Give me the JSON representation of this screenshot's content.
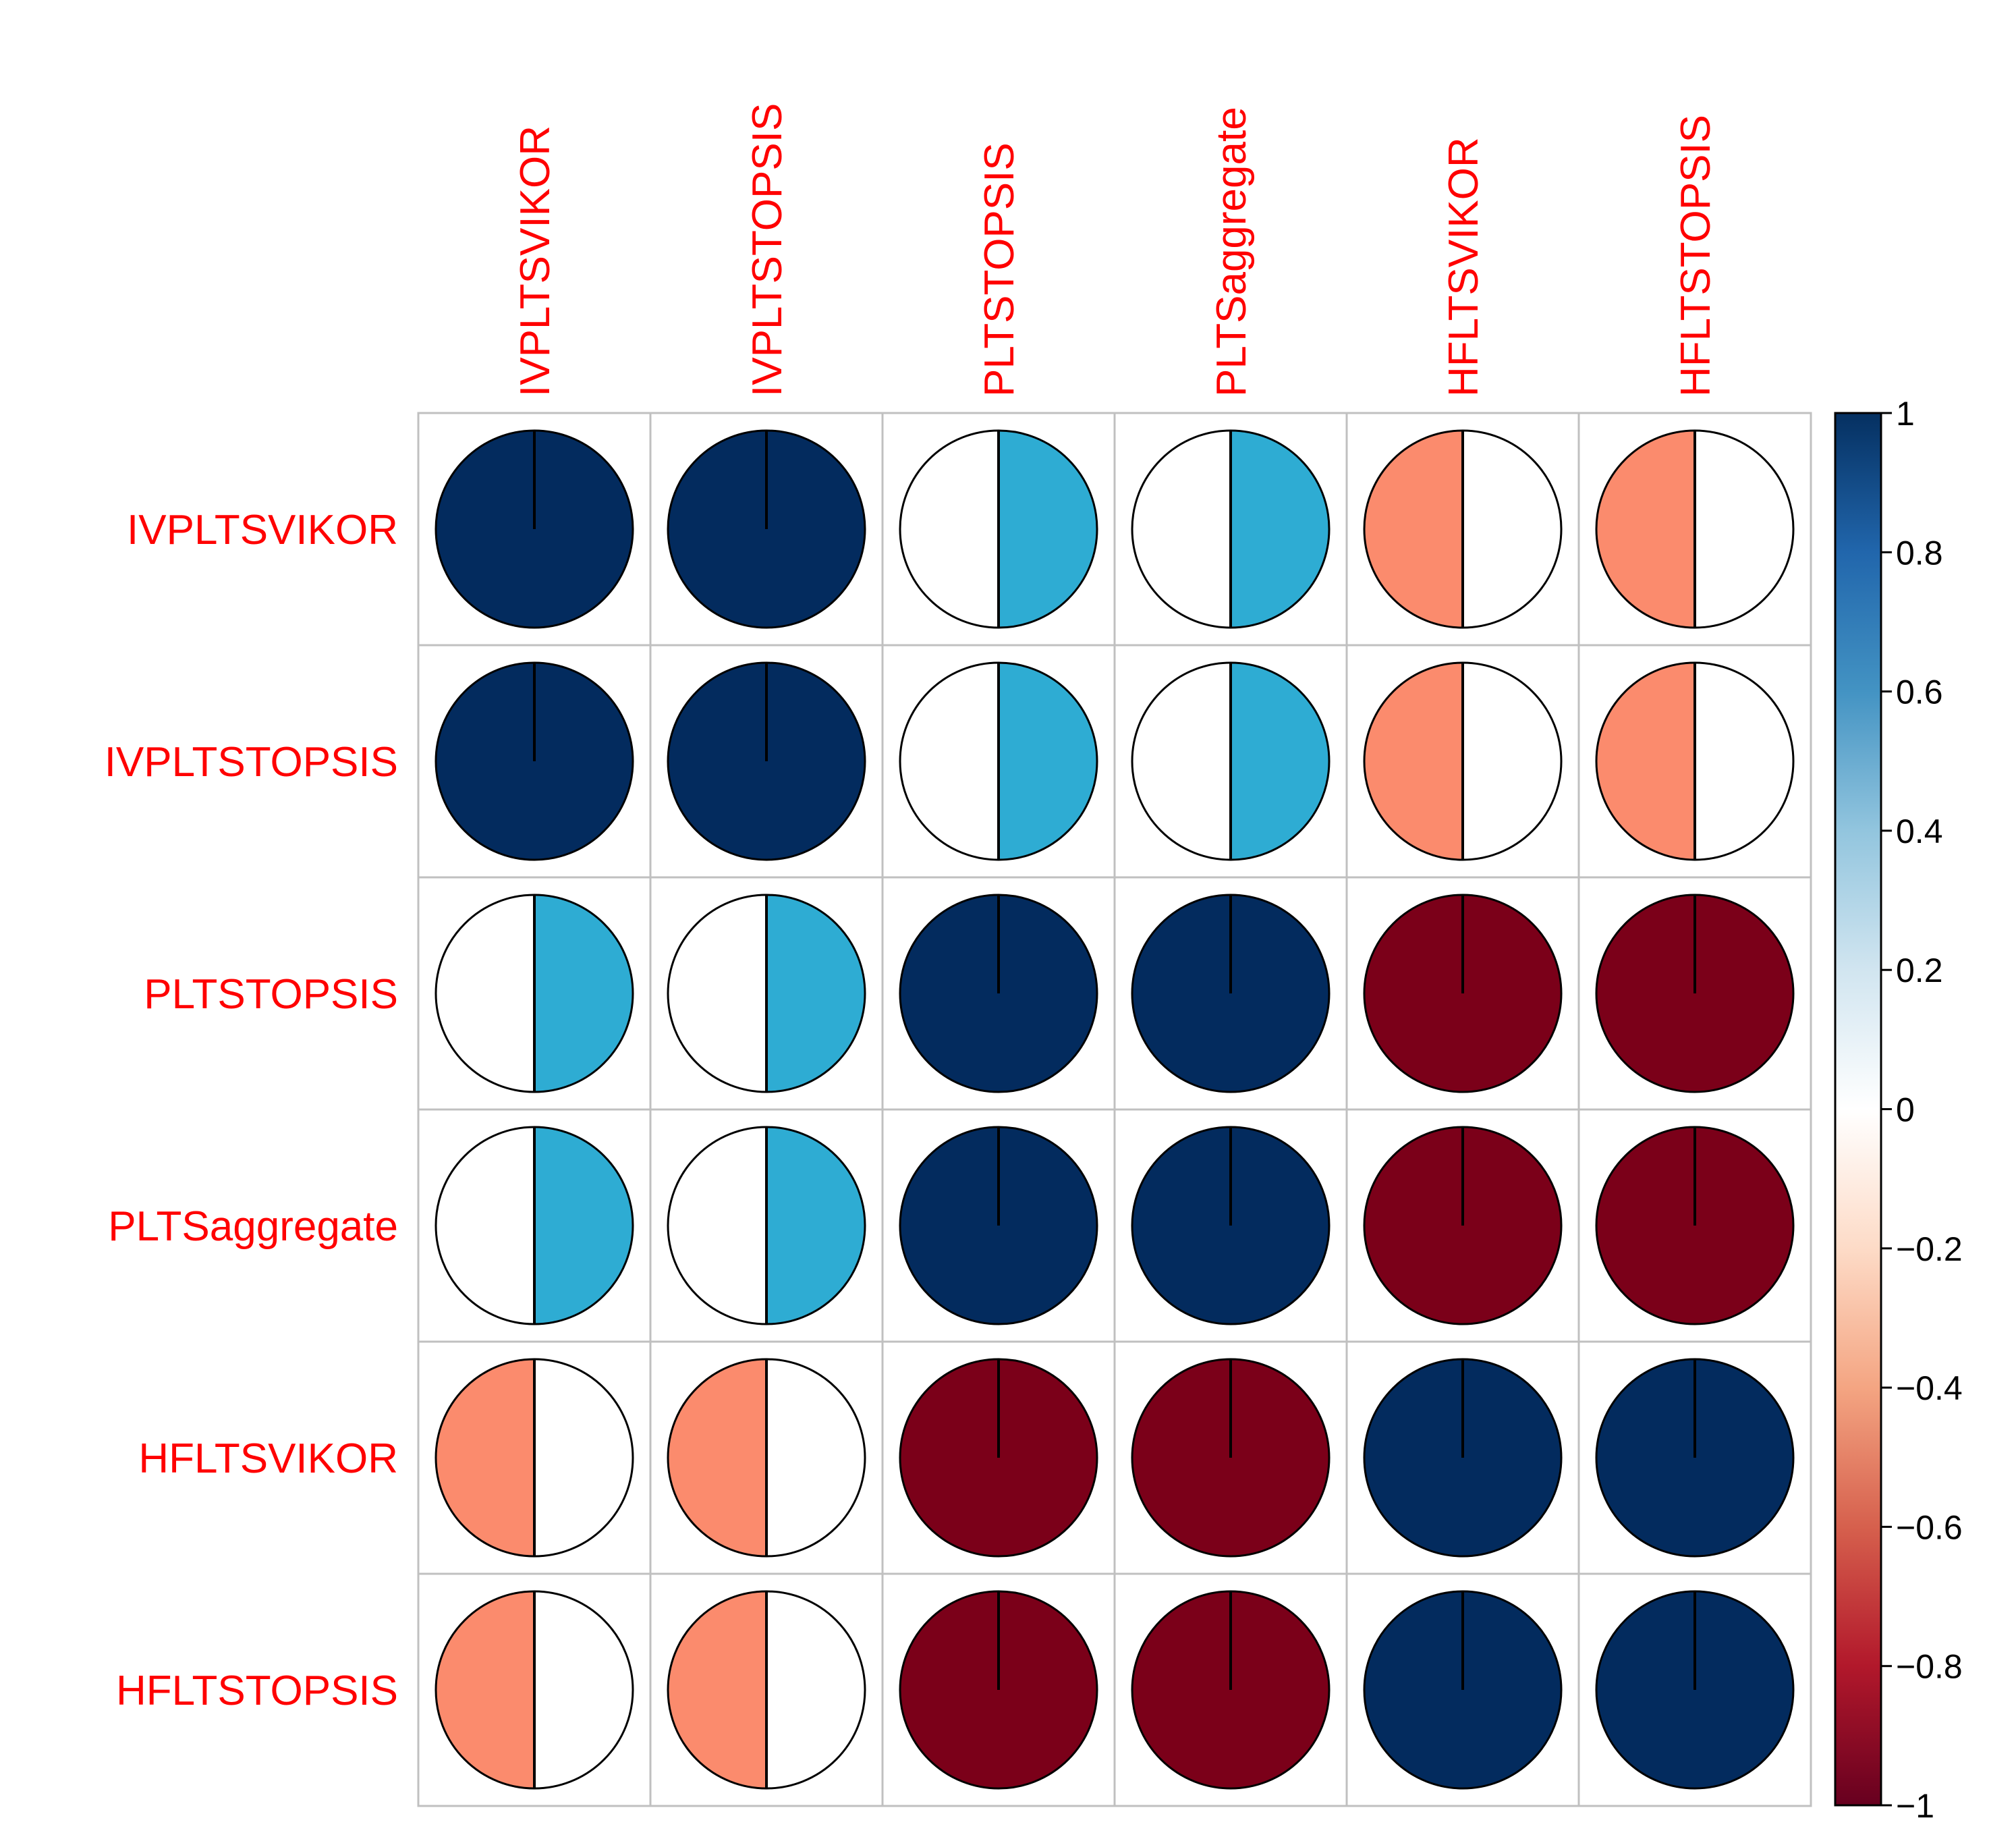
{
  "chart_data": {
    "type": "heatmap",
    "method": "pie",
    "title": "",
    "variables": [
      "IVPLTSVIKOR",
      "IVPLTSTOPSIS",
      "PLTSTOPSIS",
      "PLTSaggregate",
      "HFLTSVIKOR",
      "HFLTSTOPSIS"
    ],
    "matrix": [
      [
        1,
        1,
        0.5,
        0.5,
        -0.5,
        -0.5
      ],
      [
        1,
        1,
        0.5,
        0.5,
        -0.5,
        -0.5
      ],
      [
        0.5,
        0.5,
        1,
        1,
        -1,
        -1
      ],
      [
        0.5,
        0.5,
        1,
        1,
        -1,
        -1
      ],
      [
        -0.5,
        -0.5,
        -1,
        -1,
        1,
        1
      ],
      [
        -0.5,
        -0.5,
        -1,
        -1,
        1,
        1
      ]
    ],
    "colorbar": {
      "range": [
        -1,
        1
      ],
      "ticks": [
        1,
        0.8,
        0.6,
        0.4,
        0.2,
        0,
        -0.2,
        -0.4,
        -0.6,
        -0.8,
        -1
      ],
      "tick_labels": [
        "1",
        "0.8",
        "0.6",
        "0.4",
        "0.2",
        "0",
        "−0.2",
        "−0.4",
        "−0.6",
        "−0.8",
        "−1"
      ],
      "colors": {
        "pos_1.0": "#032b5e",
        "pos_0.5": "#2eacd3",
        "neg_0.5": "#fb8b6d",
        "neg_1.0": "#7b0019"
      },
      "gradient": [
        "#053061",
        "#2166ac",
        "#4393c3",
        "#92c5de",
        "#d1e5f0",
        "#ffffff",
        "#fddbc7",
        "#f4a582",
        "#d6604d",
        "#b2182b",
        "#67001f"
      ]
    },
    "label_color": "#ff0000"
  }
}
